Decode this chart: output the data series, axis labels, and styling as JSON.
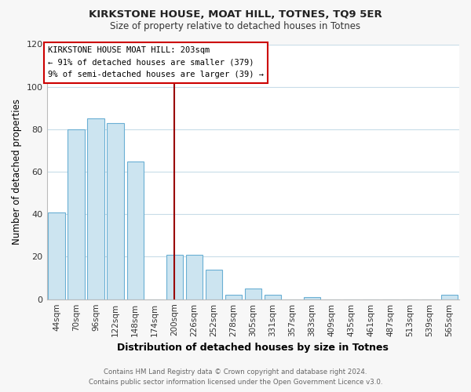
{
  "title": "KIRKSTONE HOUSE, MOAT HILL, TOTNES, TQ9 5ER",
  "subtitle": "Size of property relative to detached houses in Totnes",
  "xlabel": "Distribution of detached houses by size in Totnes",
  "ylabel": "Number of detached properties",
  "bar_labels": [
    "44sqm",
    "70sqm",
    "96sqm",
    "122sqm",
    "148sqm",
    "174sqm",
    "200sqm",
    "226sqm",
    "252sqm",
    "278sqm",
    "305sqm",
    "331sqm",
    "357sqm",
    "383sqm",
    "409sqm",
    "435sqm",
    "461sqm",
    "487sqm",
    "513sqm",
    "539sqm",
    "565sqm"
  ],
  "bar_values": [
    41,
    80,
    85,
    83,
    65,
    0,
    21,
    21,
    14,
    2,
    5,
    2,
    0,
    1,
    0,
    0,
    0,
    0,
    0,
    0,
    2
  ],
  "bar_color": "#cce4f0",
  "bar_edge_color": "#6aafd4",
  "highlight_index": 6,
  "highlight_line_color": "#990000",
  "ylim": [
    0,
    120
  ],
  "yticks": [
    0,
    20,
    40,
    60,
    80,
    100,
    120
  ],
  "annotation_title": "KIRKSTONE HOUSE MOAT HILL: 203sqm",
  "annotation_line1": "← 91% of detached houses are smaller (379)",
  "annotation_line2": "9% of semi-detached houses are larger (39) →",
  "footer1": "Contains HM Land Registry data © Crown copyright and database right 2024.",
  "footer2": "Contains public sector information licensed under the Open Government Licence v3.0.",
  "background_color": "#f7f7f7",
  "plot_bg_color": "#ffffff",
  "grid_color": "#c8dce8"
}
